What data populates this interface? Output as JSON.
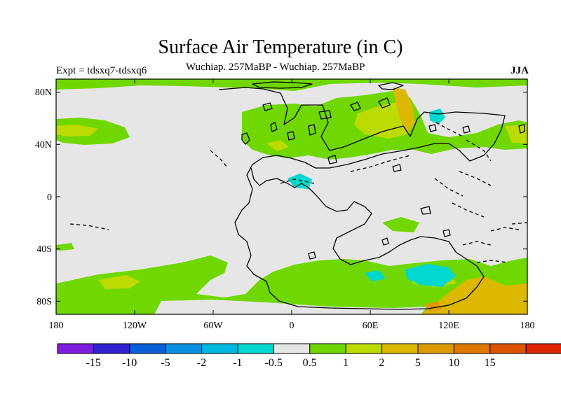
{
  "title": "Surface Air Temperature (in C)",
  "subtitle": "Wuchiap. 257MaBP - Wuchiap. 257MaBP",
  "experiment": "Expt = tdsxq7-tdsxq6",
  "season": "JJA",
  "lat_ticks": [
    "80N",
    "40N",
    "0",
    "40S",
    "80S"
  ],
  "lon_ticks": [
    "180",
    "120W",
    "60W",
    "0",
    "60E",
    "120E",
    "180"
  ],
  "colorbar": {
    "colors": [
      "#7f1ddd",
      "#3023cf",
      "#0a5ed6",
      "#0b8fe0",
      "#00b8e0",
      "#00d8cf",
      "#e6e6e6",
      "#70d800",
      "#bcdb00",
      "#dcb800",
      "#dd9a00",
      "#df7800",
      "#dd5400",
      "#dd2400"
    ],
    "labels": [
      "-15",
      "-10",
      "-5",
      "-2",
      "-1",
      "-0.5",
      "0.5",
      "1",
      "2",
      "5",
      "10",
      "15"
    ]
  },
  "colors": {
    "background_field": "#e6e6e6",
    "warm_green": "#70d800",
    "yellow_green": "#bcdb00",
    "gold": "#dcb800",
    "cyan": "#00d8cf",
    "coast": "#000000"
  }
}
